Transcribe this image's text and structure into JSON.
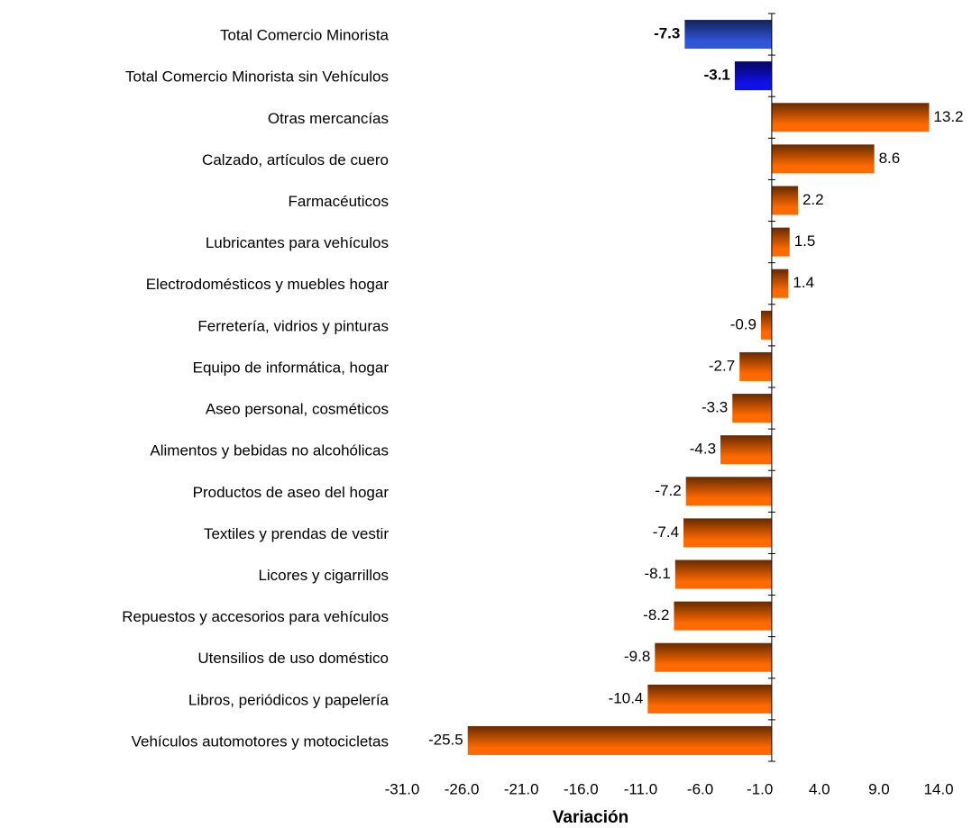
{
  "chart_data": {
    "type": "hbar",
    "categories": [
      "Total Comercio Minorista",
      "Total Comercio Minorista sin  Vehículos",
      "Otras mercancías",
      "Calzado, artículos de cuero",
      "Farmacéuticos",
      "Lubricantes para vehículos",
      "Electrodomésticos y muebles hogar",
      "Ferretería, vidrios y pinturas",
      "Equipo de informática, hogar",
      "Aseo personal, cosméticos",
      "Alimentos y bebidas no alcohólicas",
      "Productos de aseo del  hogar",
      "Textiles y prendas de vestir",
      "Licores y cigarrillos",
      "Repuestos y accesorios para vehículos",
      "Utensilios de uso doméstico",
      "Libros, periódicos y papelería",
      "Vehículos automotores y motocicletas"
    ],
    "values": [
      -7.3,
      -3.1,
      13.2,
      8.6,
      2.2,
      1.5,
      1.4,
      -0.9,
      -2.7,
      -3.3,
      -4.3,
      -7.2,
      -7.4,
      -8.1,
      -8.2,
      -9.8,
      -10.4,
      -25.5
    ],
    "colors": [
      "#2f55d8",
      "#1010e8",
      "#ff6a00",
      "#ff6a00",
      "#ff6a00",
      "#ff6a00",
      "#ff6a00",
      "#ff6a00",
      "#ff6a00",
      "#ff6a00",
      "#ff6a00",
      "#ff6a00",
      "#ff6a00",
      "#ff6a00",
      "#ff6a00",
      "#ff6a00",
      "#ff6a00",
      "#ff6a00"
    ],
    "xlabel": "Variación",
    "xlim": [
      -31,
      14
    ],
    "xticks": [
      {
        "value": -31,
        "label": "-31.0"
      },
      {
        "value": -26,
        "label": "-26.0"
      },
      {
        "value": -21,
        "label": "-21.0"
      },
      {
        "value": -16,
        "label": "-16.0"
      },
      {
        "value": -11,
        "label": "-11.0"
      },
      {
        "value": -6,
        "label": "-6.0"
      },
      {
        "value": -1,
        "label": "-1.0"
      },
      {
        "value": 4,
        "label": "4.0"
      },
      {
        "value": 9,
        "label": "9.0"
      },
      {
        "value": 14,
        "label": "14.0"
      }
    ],
    "grid": false
  }
}
